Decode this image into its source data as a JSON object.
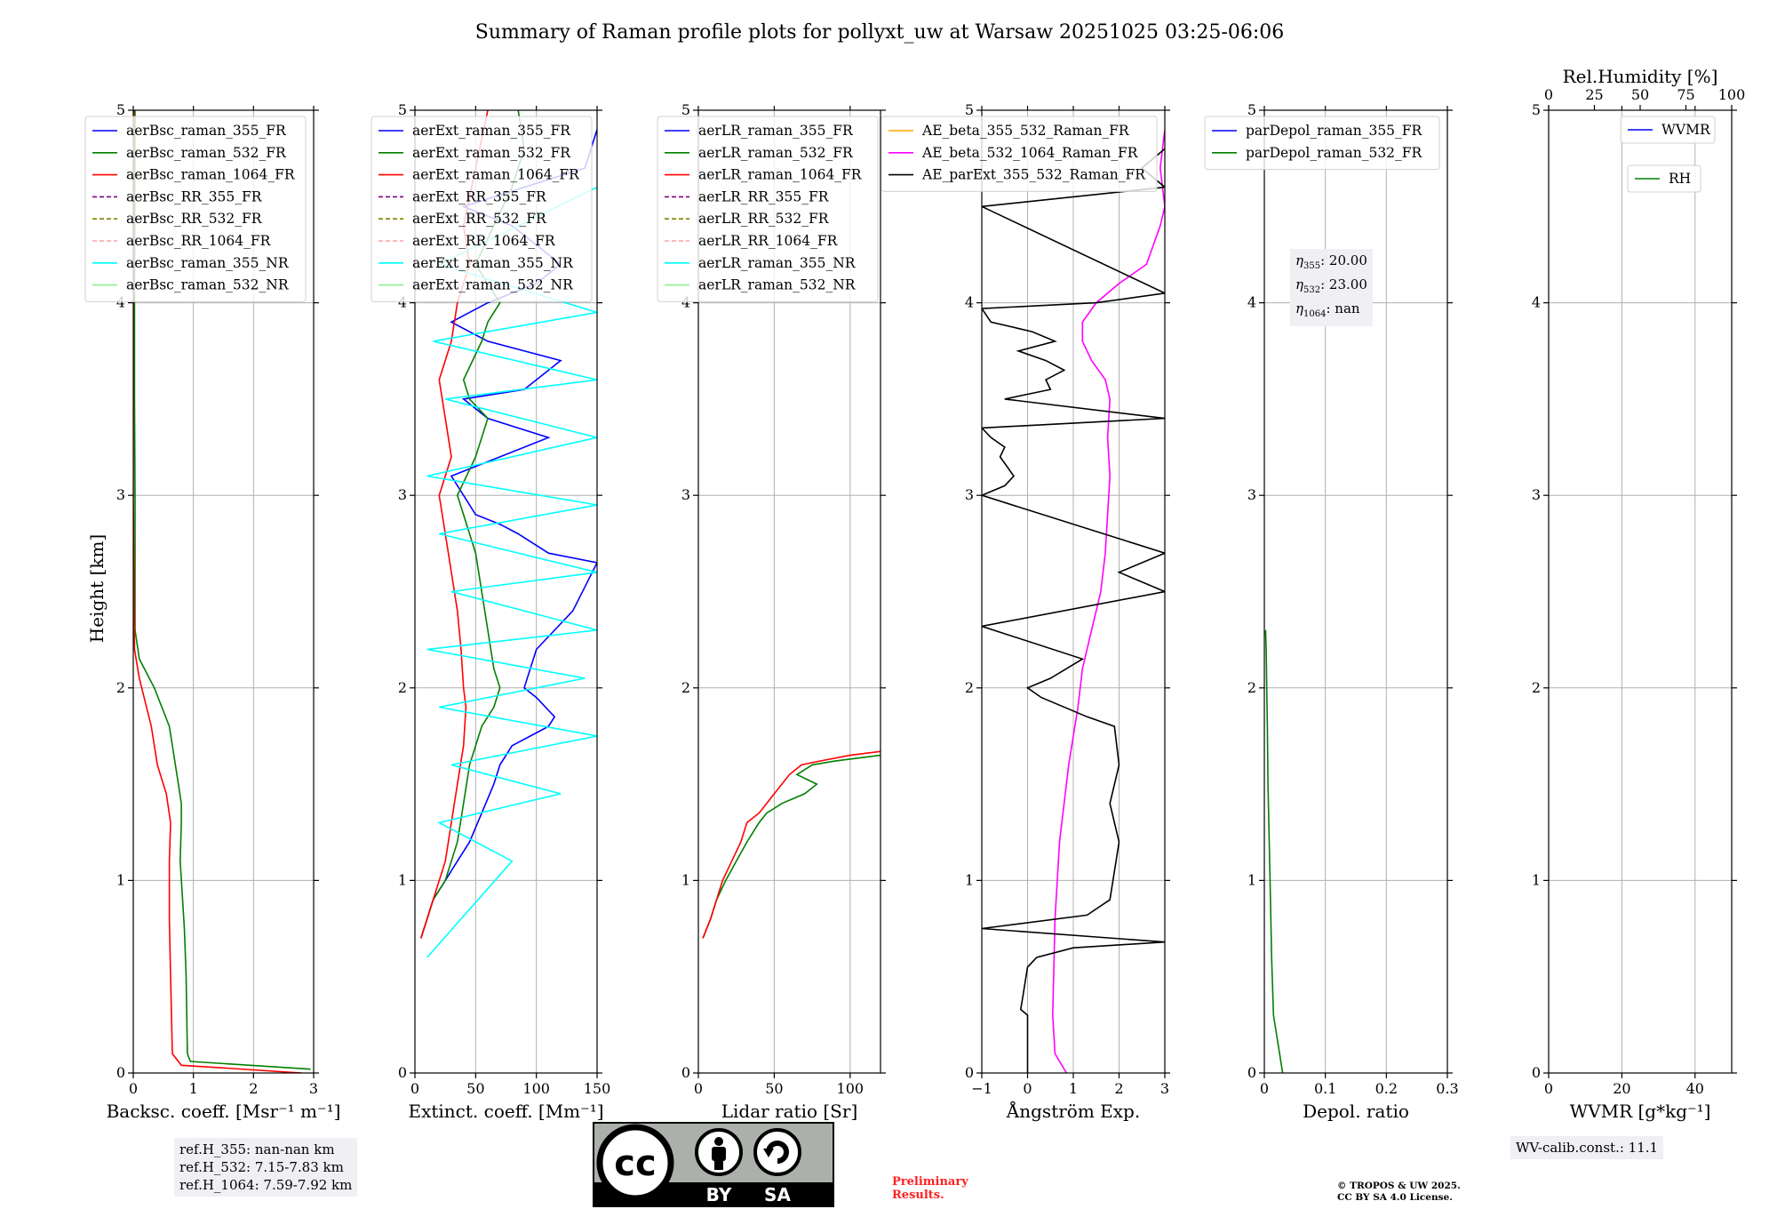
{
  "title": "Summary of Raman profile plots for pollyxt_uw at Warsaw 20251025 03:25-06:06",
  "ylabel": "Height [km]",
  "colors": {
    "blue": "#0000ff",
    "green": "#008000",
    "red": "#ff0000",
    "purple": "#800080",
    "olive": "#808000",
    "salmon": "#ffa0a0",
    "cyan": "#00ffff",
    "lightgreen": "#90ee90",
    "orange": "#ffa500",
    "magenta": "#ff00ff",
    "black": "#000000"
  },
  "chart_data": [
    {
      "type": "line",
      "xlabel": "Backsc. coeff. [Msr⁻¹ m⁻¹]",
      "xlim": [
        0,
        3
      ],
      "ylim": [
        0,
        5
      ],
      "xticks": [
        0,
        1,
        2,
        3
      ],
      "yticks": [
        0,
        1,
        2,
        3,
        4,
        5
      ],
      "grid": true,
      "legend": "top",
      "series": [
        {
          "name": "aerBsc_raman_355_FR",
          "color": "blue",
          "style": "solid",
          "x": [],
          "y": []
        },
        {
          "name": "aerBsc_raman_532_FR",
          "color": "green",
          "style": "solid",
          "x": [
            2.95,
            0.95,
            0.9,
            0.88,
            0.85,
            0.82,
            0.78,
            0.8,
            0.8,
            0.75,
            0.6,
            0.35,
            0.1,
            0.03,
            0.03,
            0.02,
            0.02,
            0.03
          ],
          "y": [
            0.02,
            0.06,
            0.1,
            0.5,
            0.75,
            0.9,
            1.1,
            1.3,
            1.4,
            1.5,
            1.8,
            2.0,
            2.15,
            2.3,
            3.0,
            3.5,
            4.0,
            5.0
          ]
        },
        {
          "name": "aerBsc_raman_1064_FR",
          "color": "red",
          "style": "solid",
          "x": [
            2.8,
            0.8,
            0.65,
            0.62,
            0.6,
            0.6,
            0.62,
            0.55,
            0.4,
            0.3,
            0.1,
            0.02,
            0.0,
            0.0,
            0.01
          ],
          "y": [
            0.0,
            0.04,
            0.1,
            0.5,
            0.8,
            1.1,
            1.3,
            1.45,
            1.6,
            1.8,
            2.05,
            2.2,
            3.0,
            4.0,
            5.0
          ]
        },
        {
          "name": "aerBsc_RR_355_FR",
          "color": "purple",
          "style": "dashed",
          "x": [],
          "y": []
        },
        {
          "name": "aerBsc_RR_532_FR",
          "color": "olive",
          "style": "dashed",
          "x": [],
          "y": []
        },
        {
          "name": "aerBsc_RR_1064_FR",
          "color": "salmon",
          "style": "dashed",
          "x": [],
          "y": []
        },
        {
          "name": "aerBsc_raman_355_NR",
          "color": "cyan",
          "style": "solid",
          "x": [],
          "y": []
        },
        {
          "name": "aerBsc_raman_532_NR",
          "color": "lightgreen",
          "style": "solid",
          "x": [],
          "y": []
        }
      ]
    },
    {
      "type": "line",
      "xlabel": "Extinct. coeff. [Mm⁻¹]",
      "xlim": [
        0,
        150
      ],
      "ylim": [
        0,
        5
      ],
      "xticks": [
        0,
        50,
        100,
        150
      ],
      "yticks": [
        0,
        1,
        2,
        3,
        4,
        5
      ],
      "grid": true,
      "legend": "top",
      "series": [
        {
          "name": "aerExt_raman_355_FR",
          "color": "blue",
          "style": "solid",
          "x": [
            5,
            10,
            15,
            25,
            35,
            45,
            55,
            65,
            70,
            80,
            95,
            110,
            115,
            100,
            90,
            100,
            130,
            150,
            110,
            85,
            70,
            50,
            40,
            30,
            50,
            70,
            110,
            60,
            40,
            90,
            120,
            60,
            30,
            60,
            100,
            120,
            80,
            40,
            140,
            150
          ],
          "y": [
            0.7,
            0.8,
            0.9,
            1.0,
            1.1,
            1.2,
            1.35,
            1.5,
            1.6,
            1.7,
            1.75,
            1.8,
            1.85,
            1.95,
            2.0,
            2.2,
            2.4,
            2.65,
            2.7,
            2.8,
            2.85,
            2.9,
            3.0,
            3.1,
            3.15,
            3.2,
            3.3,
            3.4,
            3.5,
            3.55,
            3.7,
            3.8,
            3.9,
            4.0,
            4.1,
            4.2,
            4.4,
            4.5,
            4.7,
            4.9
          ]
        },
        {
          "name": "aerExt_raman_532_FR",
          "color": "green",
          "style": "solid",
          "x": [
            5,
            10,
            15,
            25,
            35,
            40,
            45,
            55,
            65,
            70,
            65,
            60,
            55,
            50,
            45,
            40,
            35,
            50,
            60,
            45,
            40,
            55,
            60,
            70,
            50,
            80,
            90,
            85
          ],
          "y": [
            0.7,
            0.8,
            0.9,
            1.0,
            1.2,
            1.4,
            1.6,
            1.8,
            1.9,
            2.0,
            2.1,
            2.3,
            2.5,
            2.7,
            2.8,
            2.9,
            3.0,
            3.2,
            3.4,
            3.5,
            3.6,
            3.8,
            3.9,
            4.0,
            4.2,
            4.6,
            4.8,
            5.0
          ]
        },
        {
          "name": "aerExt_raman_1064_FR",
          "color": "red",
          "style": "solid",
          "x": [
            5,
            10,
            15,
            25,
            30,
            35,
            40,
            42,
            40,
            38,
            35,
            30,
            25,
            20,
            30,
            25,
            20,
            30,
            35,
            45,
            40,
            50,
            60
          ],
          "y": [
            0.7,
            0.8,
            0.9,
            1.1,
            1.3,
            1.5,
            1.7,
            1.9,
            2.0,
            2.2,
            2.4,
            2.6,
            2.8,
            3.0,
            3.2,
            3.4,
            3.6,
            3.8,
            4.0,
            4.2,
            4.4,
            4.7,
            5.0
          ]
        },
        {
          "name": "aerExt_RR_355_FR",
          "color": "purple",
          "style": "dashed",
          "x": [],
          "y": []
        },
        {
          "name": "aerExt_RR_532_FR",
          "color": "olive",
          "style": "dashed",
          "x": [],
          "y": []
        },
        {
          "name": "aerExt_RR_1064_FR",
          "color": "salmon",
          "style": "dashed",
          "x": [],
          "y": []
        },
        {
          "name": "aerExt_raman_355_NR",
          "color": "cyan",
          "style": "solid",
          "x": [
            10,
            80,
            20,
            120,
            30,
            150,
            20,
            140,
            10,
            150,
            30,
            150,
            20,
            150,
            10,
            150,
            25,
            150,
            15,
            150,
            20,
            150
          ],
          "y": [
            0.6,
            1.1,
            1.3,
            1.45,
            1.6,
            1.75,
            1.9,
            2.05,
            2.2,
            2.3,
            2.5,
            2.6,
            2.8,
            2.95,
            3.1,
            3.3,
            3.5,
            3.6,
            3.8,
            3.95,
            4.2,
            4.6
          ]
        },
        {
          "name": "aerExt_raman_532_NR",
          "color": "lightgreen",
          "style": "solid",
          "x": [],
          "y": []
        }
      ]
    },
    {
      "type": "line",
      "xlabel": "Lidar ratio [Sr]",
      "xlim": [
        0,
        120
      ],
      "ylim": [
        0,
        5
      ],
      "xticks": [
        0,
        50,
        100
      ],
      "yticks": [
        0,
        1,
        2,
        3,
        4,
        5
      ],
      "grid": true,
      "legend": "top",
      "series": [
        {
          "name": "aerLR_raman_355_FR",
          "color": "blue",
          "style": "solid",
          "x": [],
          "y": []
        },
        {
          "name": "aerLR_raman_532_FR",
          "color": "green",
          "style": "solid",
          "x": [
            3,
            8,
            12,
            18,
            25,
            32,
            40,
            45,
            55,
            70,
            78,
            65,
            75,
            90,
            120
          ],
          "y": [
            0.7,
            0.8,
            0.9,
            1.0,
            1.1,
            1.2,
            1.3,
            1.35,
            1.4,
            1.45,
            1.5,
            1.55,
            1.6,
            1.62,
            1.65
          ]
        },
        {
          "name": "aerLR_raman_1064_FR",
          "color": "red",
          "style": "solid",
          "x": [
            3,
            8,
            12,
            16,
            22,
            28,
            32,
            40,
            45,
            50,
            55,
            60,
            68,
            80,
            100,
            120
          ],
          "y": [
            0.7,
            0.8,
            0.9,
            1.0,
            1.1,
            1.2,
            1.3,
            1.35,
            1.4,
            1.45,
            1.5,
            1.55,
            1.6,
            1.62,
            1.65,
            1.67
          ]
        },
        {
          "name": "aerLR_RR_355_FR",
          "color": "purple",
          "style": "dashed",
          "x": [],
          "y": []
        },
        {
          "name": "aerLR_RR_532_FR",
          "color": "olive",
          "style": "dashed",
          "x": [],
          "y": []
        },
        {
          "name": "aerLR_RR_1064_FR",
          "color": "salmon",
          "style": "dashed",
          "x": [],
          "y": []
        },
        {
          "name": "aerLR_raman_355_NR",
          "color": "cyan",
          "style": "solid",
          "x": [],
          "y": []
        },
        {
          "name": "aerLR_raman_532_NR",
          "color": "lightgreen",
          "style": "solid",
          "x": [],
          "y": []
        }
      ]
    },
    {
      "type": "line",
      "xlabel": "Ångström Exp.",
      "xlim": [
        -1,
        3
      ],
      "ylim": [
        0,
        5
      ],
      "xticks": [
        -1,
        0,
        1,
        2,
        3
      ],
      "yticks": [
        0,
        1,
        2,
        3,
        4,
        5
      ],
      "grid": true,
      "legend": "top",
      "series": [
        {
          "name": "AE_beta_355_532_Raman_FR",
          "color": "orange",
          "style": "solid",
          "x": [],
          "y": []
        },
        {
          "name": "AE_beta_532_1064_Raman_FR",
          "color": "magenta",
          "style": "solid",
          "x": [
            0.85,
            0.6,
            0.55,
            0.6,
            0.7,
            0.9,
            1.1,
            1.2,
            1.4,
            1.6,
            1.7,
            1.75,
            1.8,
            1.75,
            1.8,
            1.7,
            1.4,
            1.2,
            1.2,
            1.5,
            2.0,
            2.6,
            2.9,
            3.0,
            2.9,
            3.0
          ],
          "y": [
            0.0,
            0.1,
            0.3,
            0.8,
            1.2,
            1.6,
            1.9,
            2.1,
            2.3,
            2.5,
            2.7,
            2.9,
            3.1,
            3.3,
            3.5,
            3.6,
            3.7,
            3.8,
            3.9,
            4.0,
            4.1,
            4.2,
            4.4,
            4.5,
            4.7,
            4.9
          ]
        },
        {
          "name": "AE_parExt_355_532_Raman_FR",
          "color": "black",
          "style": "solid",
          "x": [
            0.0,
            0.0,
            -0.15,
            -0.1,
            0.0,
            0.2,
            1.0,
            3.0,
            -1.0,
            1.3,
            1.8,
            2.0,
            1.9,
            1.8,
            2.0,
            1.9,
            1.3,
            0.3,
            0.0,
            0.5,
            1.2,
            -1.0,
            3.0,
            2.0,
            3.0,
            -1.0,
            -0.5,
            -0.3,
            -0.6,
            -0.5,
            -0.8,
            -1.0,
            3.0,
            -0.5,
            0.5,
            0.4,
            0.8,
            0.4,
            -0.2,
            0.6,
            0.1,
            -0.8,
            -1.0,
            1.5,
            3.0,
            -1.0,
            3.0,
            2.5,
            3.0
          ],
          "y": [
            0.0,
            0.3,
            0.33,
            0.4,
            0.55,
            0.6,
            0.65,
            0.68,
            0.75,
            0.82,
            0.9,
            1.2,
            1.3,
            1.4,
            1.6,
            1.8,
            1.85,
            1.95,
            2.0,
            2.05,
            2.15,
            2.32,
            2.5,
            2.6,
            2.7,
            3.0,
            3.05,
            3.1,
            3.2,
            3.25,
            3.3,
            3.35,
            3.4,
            3.5,
            3.55,
            3.6,
            3.65,
            3.7,
            3.75,
            3.8,
            3.85,
            3.9,
            3.97,
            4.0,
            4.05,
            4.5,
            4.6,
            4.7,
            4.8
          ]
        }
      ]
    },
    {
      "type": "line",
      "xlabel": "Depol. ratio",
      "xlim": [
        0,
        0.3
      ],
      "ylim": [
        0,
        5
      ],
      "xticks": [
        0.0,
        0.1,
        0.2,
        0.3
      ],
      "yticks": [
        0,
        1,
        2,
        3,
        4,
        5
      ],
      "grid": true,
      "legend": "top",
      "annotation": {
        "eta355": "20.00",
        "eta532": "23.00",
        "eta1064": "nan"
      },
      "series": [
        {
          "name": "parDepol_raman_355_FR",
          "color": "blue",
          "style": "solid",
          "x": [],
          "y": []
        },
        {
          "name": "parDepol_raman_532_FR",
          "color": "green",
          "style": "solid",
          "x": [
            0.03,
            0.025,
            0.015,
            0.012,
            0.01,
            0.008,
            0.006,
            0.005,
            0.004,
            0.003,
            0.002
          ],
          "y": [
            0.0,
            0.1,
            0.3,
            0.6,
            0.9,
            1.2,
            1.5,
            1.8,
            2.0,
            2.2,
            2.3
          ]
        }
      ]
    },
    {
      "type": "line",
      "xlabel": "WVMR [g*kg⁻¹]",
      "xlabel_top": "Rel.Humidity [%]",
      "xlim": [
        0,
        50
      ],
      "xlim_top": [
        0,
        100
      ],
      "ylim": [
        0,
        5
      ],
      "xticks": [
        0,
        20,
        40
      ],
      "xticks_top": [
        0,
        25,
        50,
        75,
        100
      ],
      "yticks": [
        0,
        1,
        2,
        3,
        4,
        5
      ],
      "grid": true,
      "legend": "top-right",
      "series": [
        {
          "name": "WVMR",
          "color": "blue",
          "style": "solid",
          "x": [],
          "y": []
        },
        {
          "name": "RH",
          "color": "green",
          "style": "solid",
          "x": [],
          "y": []
        }
      ]
    }
  ],
  "notes": {
    "ref_355": "ref.H_355: nan-nan km",
    "ref_532": "ref.H_532: 7.15-7.83 km",
    "ref_1064": "ref.H_1064: 7.59-7.92 km",
    "wv_calib": "WV-calib.const.: 11.1",
    "cc_cc": "cc",
    "cc_by": "BY",
    "cc_sa": "SA",
    "prelim_1": "Preliminary",
    "prelim_2": "Results.",
    "copyright_1": "© TROPOS & UW 2025.",
    "copyright_2": "CC BY SA 4.0 License."
  }
}
